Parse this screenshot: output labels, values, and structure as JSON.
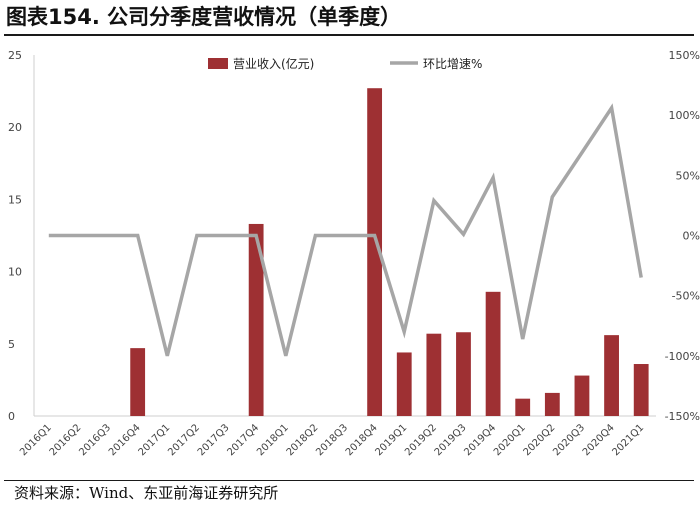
{
  "page_title": "图表154. 公司分季度营收情况（单季度）",
  "source": "资料来源：Wind、东亚前海证券研究所",
  "chart_data": {
    "type": "bar+line",
    "categories": [
      "2016Q1",
      "2016Q2",
      "2016Q3",
      "2016Q4",
      "2017Q1",
      "2017Q2",
      "2017Q3",
      "2017Q4",
      "2018Q1",
      "2018Q2",
      "2018Q3",
      "2018Q4",
      "2019Q1",
      "2019Q2",
      "2019Q3",
      "2019Q4",
      "2020Q1",
      "2020Q2",
      "2020Q3",
      "2020Q4",
      "2021Q1"
    ],
    "series": [
      {
        "name": "营业收入(亿元)",
        "type": "bar",
        "axis": "left",
        "color": "#9E3033",
        "values": [
          0,
          0,
          0,
          4.7,
          0,
          0,
          0,
          13.3,
          0,
          0,
          0,
          22.7,
          4.4,
          5.7,
          5.8,
          8.6,
          1.2,
          1.6,
          2.8,
          5.6,
          3.6
        ]
      },
      {
        "name": "环比增速%",
        "type": "line",
        "axis": "right",
        "color": "#A6A6A6",
        "values": [
          0,
          0,
          0,
          0,
          -100,
          0,
          0,
          0,
          -100,
          0,
          0,
          0,
          -80,
          29,
          1,
          48,
          -86,
          32,
          69,
          106,
          -35
        ]
      }
    ],
    "y_left": {
      "min": 0,
      "max": 25,
      "ticks": [
        "0",
        "5",
        "10",
        "15",
        "20",
        "25"
      ]
    },
    "y_right": {
      "min": -150,
      "max": 150,
      "ticks": [
        "-150%",
        "-100%",
        "-50%",
        "0%",
        "50%",
        "100%",
        "150%"
      ]
    },
    "legend_position": "top-center",
    "grid": false
  }
}
